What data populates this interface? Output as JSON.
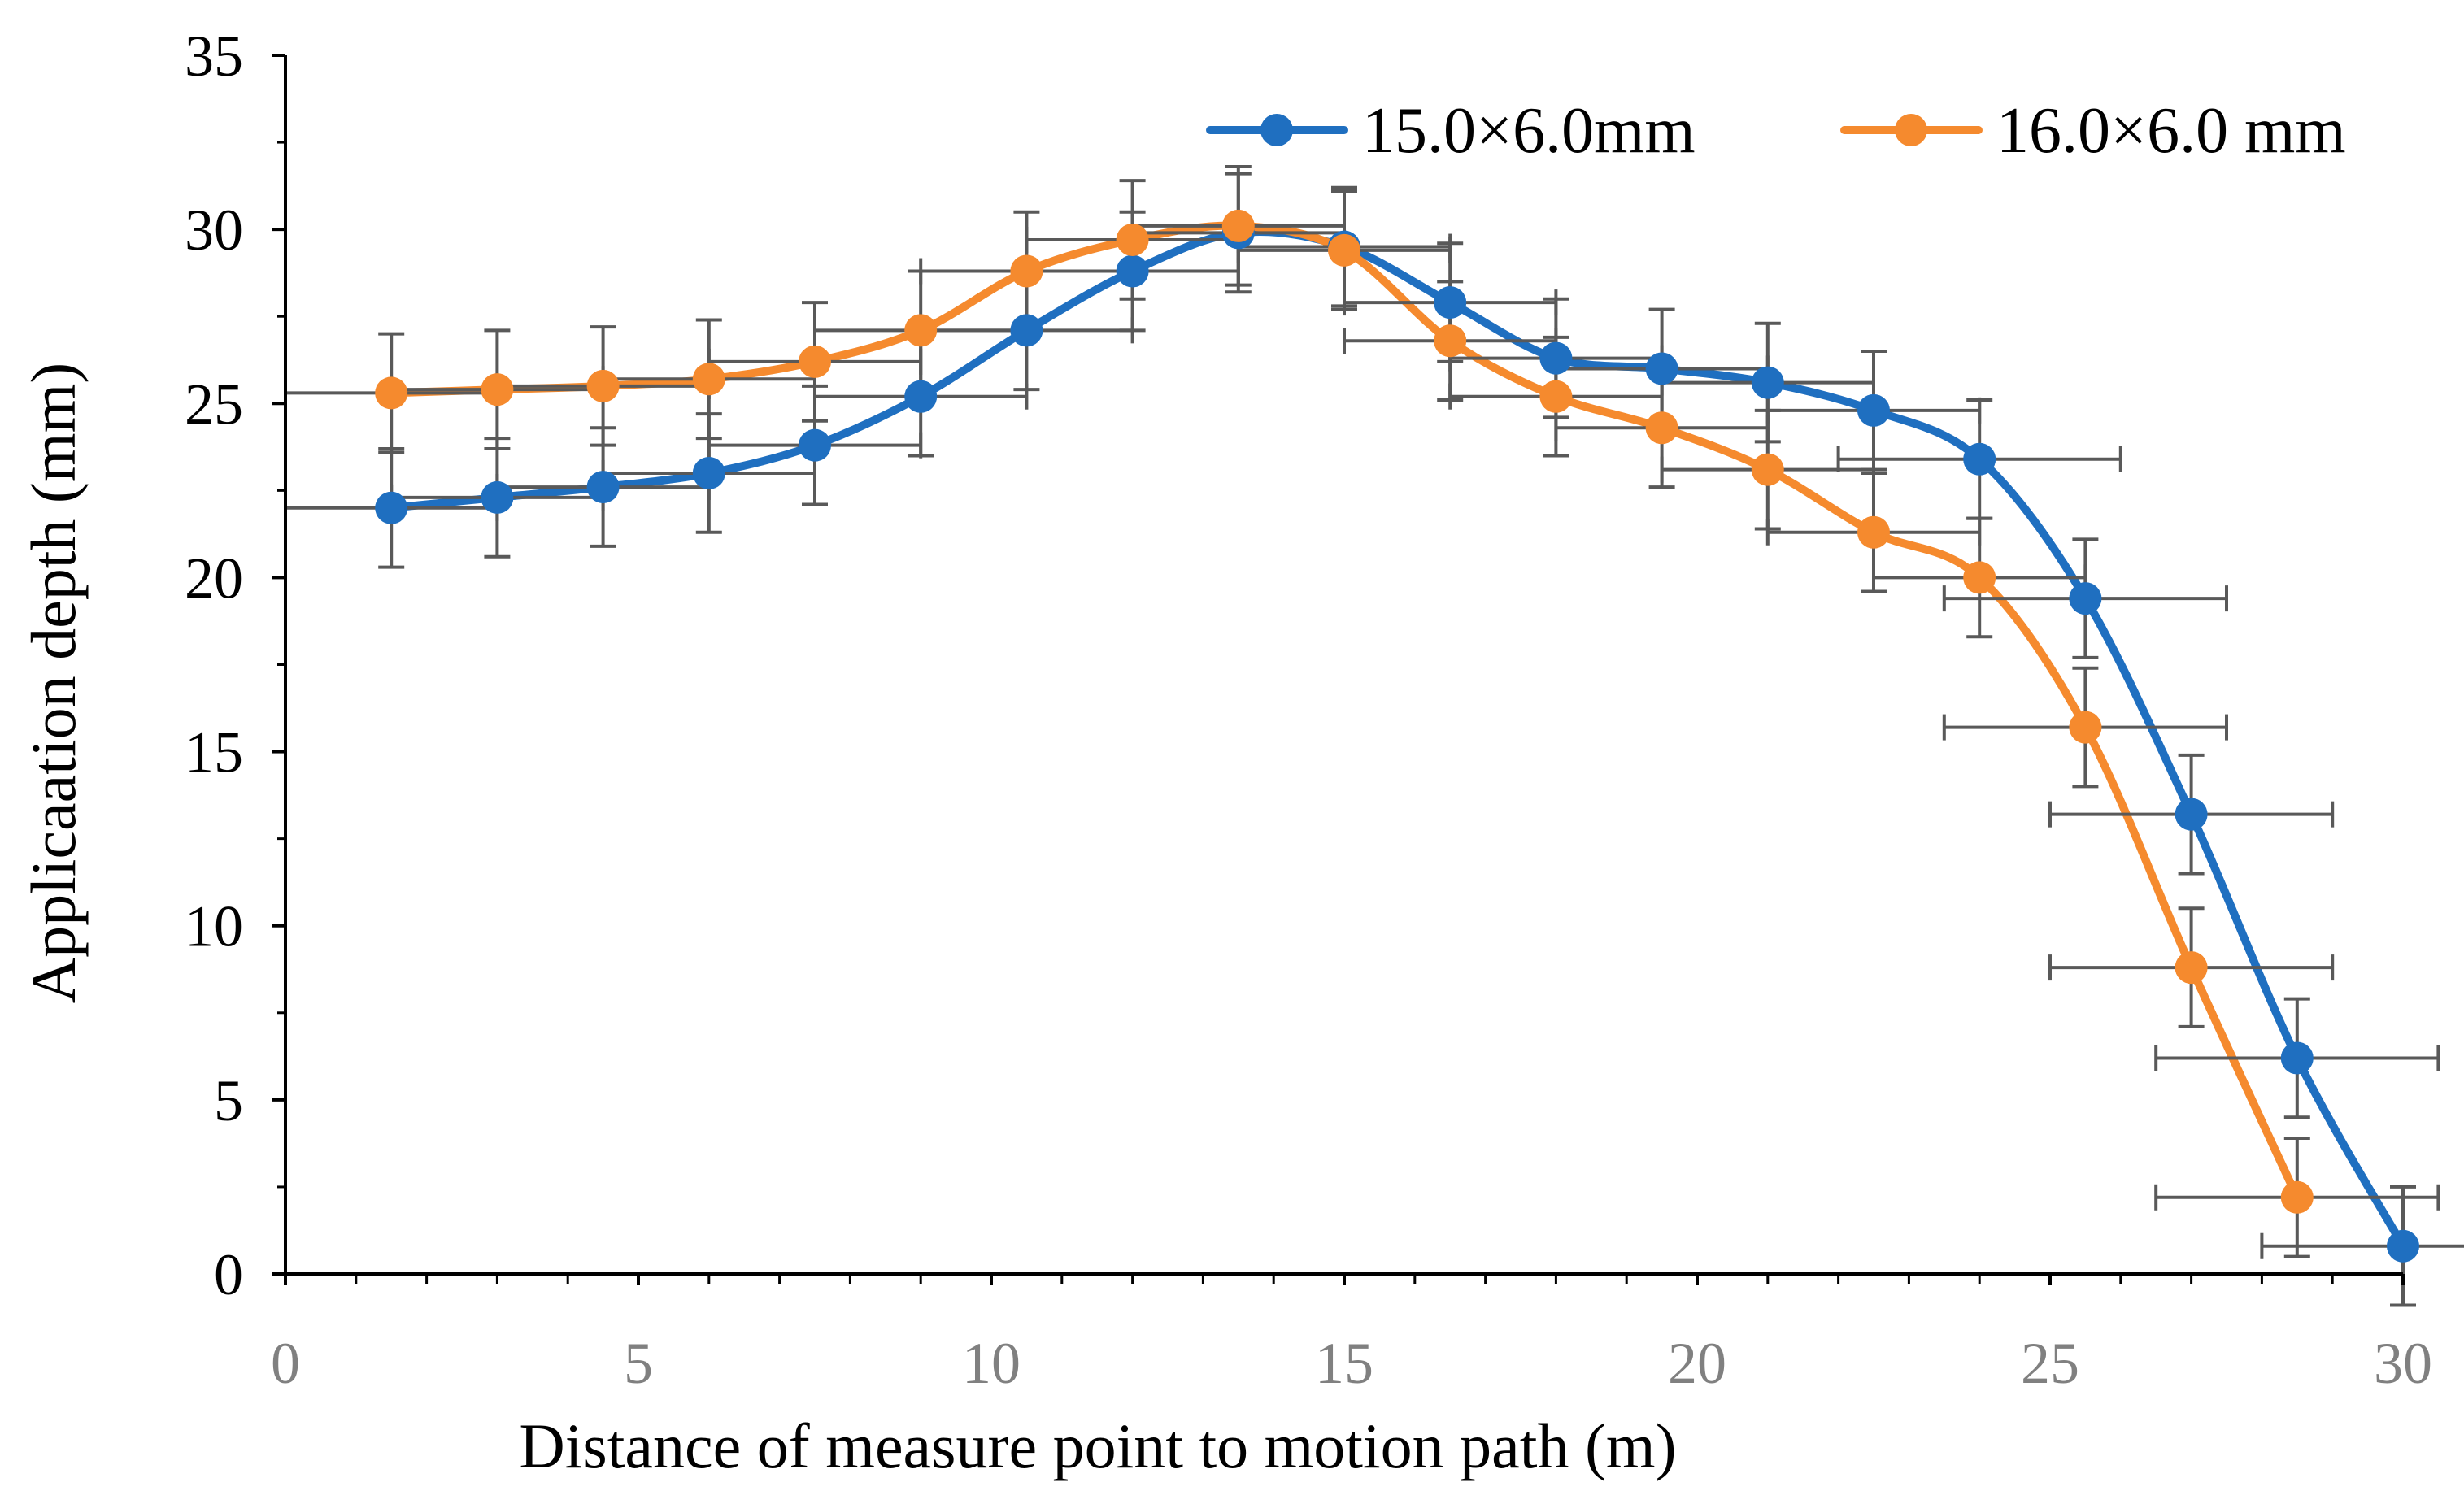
{
  "chart_data": {
    "type": "line",
    "title": "",
    "xlabel": "Distance of measure point to motion path (m)",
    "ylabel": "Applicaation depth (mm)",
    "xlim": [
      0,
      30
    ],
    "ylim": [
      0,
      35
    ],
    "xticks": [
      "0",
      "5",
      "10",
      "15",
      "20",
      "25",
      "30"
    ],
    "yticks": [
      "0",
      "5",
      "10",
      "15",
      "20",
      "25",
      "30",
      "35"
    ],
    "grid": false,
    "legend_position": "top-right",
    "series": [
      {
        "name": "15.0×6.0mm",
        "color": "#1F6FC0",
        "x": [
          1.5,
          3,
          4.5,
          6,
          7.5,
          9,
          10.5,
          12,
          13.5,
          15,
          16.5,
          18,
          19.5,
          21,
          22.5,
          24,
          25.5,
          27,
          28.5,
          30
        ],
        "y": [
          22.0,
          22.3,
          22.6,
          23.0,
          23.8,
          25.2,
          27.1,
          28.8,
          29.9,
          29.5,
          27.9,
          26.3,
          26.0,
          25.6,
          24.8,
          23.4,
          19.4,
          13.2,
          6.2,
          0.8
        ],
        "y_err": [
          1.7,
          1.7,
          1.7,
          1.7,
          1.7,
          1.7,
          1.7,
          1.7,
          1.7,
          1.7,
          1.7,
          1.7,
          1.7,
          1.7,
          1.7,
          1.7,
          1.7,
          1.7,
          1.7,
          1.7
        ],
        "x_err": [
          1.5,
          1.5,
          1.5,
          1.5,
          1.5,
          1.5,
          1.5,
          1.5,
          1.5,
          1.5,
          1.5,
          1.5,
          1.5,
          1.5,
          1.5,
          2.0,
          2.0,
          2.0,
          2.0,
          2.0
        ]
      },
      {
        "name": "16.0×6.0 mm",
        "color": "#F58A2E",
        "x": [
          1.5,
          3,
          4.5,
          6,
          7.5,
          9,
          10.5,
          12,
          13.5,
          15,
          16.5,
          18,
          19.5,
          21,
          22.5,
          24,
          25.5,
          27,
          28.5
        ],
        "y": [
          25.3,
          25.4,
          25.5,
          25.7,
          26.2,
          27.1,
          28.8,
          29.7,
          30.1,
          29.4,
          26.8,
          25.2,
          24.3,
          23.1,
          21.3,
          20.0,
          15.7,
          8.8,
          2.2
        ],
        "y_err": [
          1.7,
          1.7,
          1.7,
          1.7,
          1.7,
          1.7,
          1.7,
          1.7,
          1.7,
          1.7,
          1.7,
          1.7,
          1.7,
          1.7,
          1.7,
          1.7,
          1.7,
          1.7,
          1.7
        ],
        "x_err": [
          1.5,
          1.5,
          1.5,
          1.5,
          1.5,
          1.5,
          1.5,
          1.5,
          1.5,
          1.5,
          1.5,
          1.5,
          1.5,
          1.5,
          1.5,
          1.5,
          2.0,
          2.0,
          2.0
        ]
      }
    ],
    "error_bar_color": "#595959"
  }
}
